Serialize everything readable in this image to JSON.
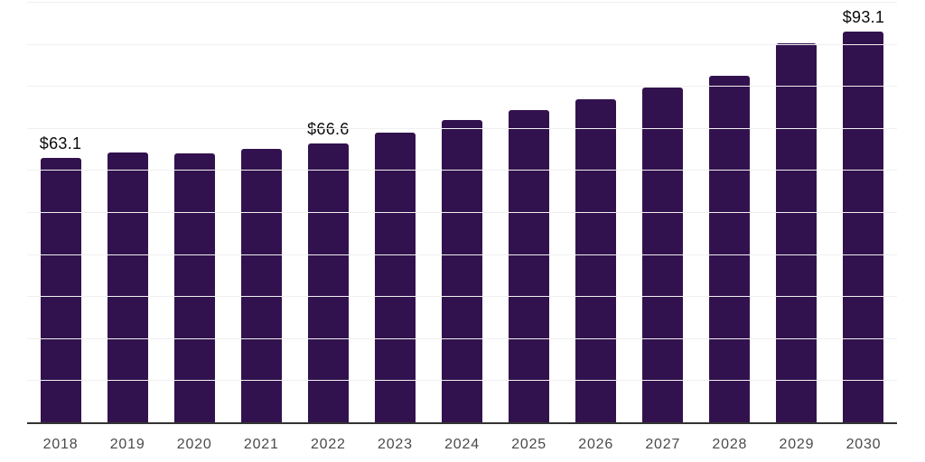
{
  "chart_data": {
    "type": "bar",
    "categories": [
      "2018",
      "2019",
      "2020",
      "2021",
      "2022",
      "2023",
      "2024",
      "2025",
      "2026",
      "2027",
      "2028",
      "2029",
      "2030"
    ],
    "values": [
      63.1,
      64.4,
      64.1,
      65.3,
      66.6,
      69.0,
      72.0,
      74.5,
      77.0,
      79.8,
      82.6,
      90.3,
      93.1
    ],
    "bar_labels": [
      "$63.1",
      "",
      "",
      "",
      "$66.6",
      "",
      "",
      "",
      "",
      "",
      "",
      "",
      "$93.1"
    ],
    "xlabel": "",
    "ylabel": "",
    "ylim": [
      0,
      100
    ],
    "grid": true,
    "gridline_step": 10,
    "legend": "none",
    "colors": {
      "bar": "#32124E",
      "axis_line": "#333333",
      "gridline": "#f0f0f0",
      "value_label": "#0a0a0a",
      "tick_label": "#4a4a4a",
      "background": "#ffffff"
    }
  }
}
